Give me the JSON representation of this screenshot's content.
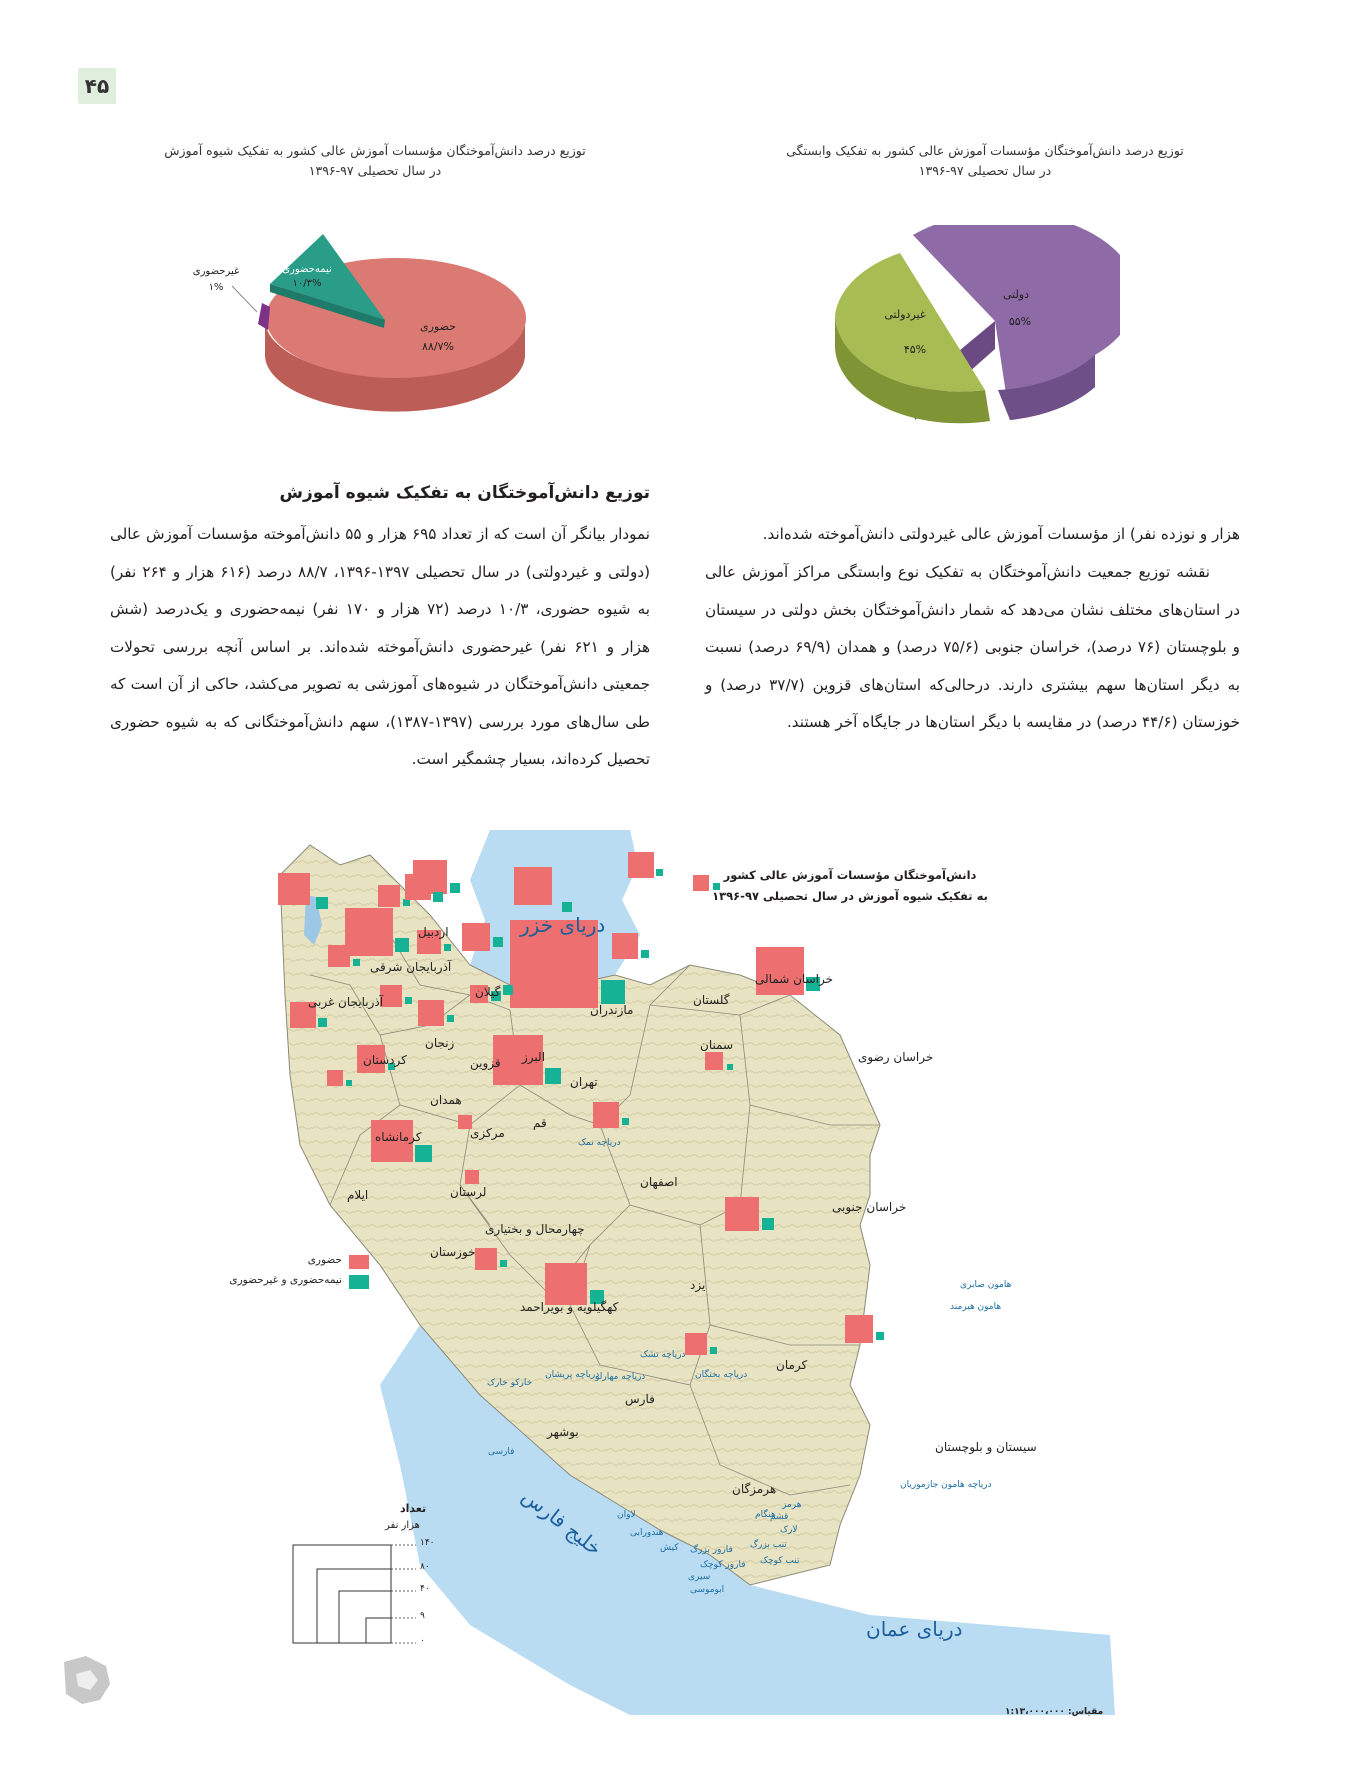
{
  "page_number": "۴۵",
  "colors": {
    "governmental": "#8f6aa8",
    "non_governmental": "#a6bc52",
    "in_person": "#d9776e",
    "semi_in_person": "#27a08a",
    "non_in_person": "#7a2f86",
    "square_in_person": "#ee6f6f",
    "square_semi": "#15b295",
    "sea": "#b9dcf2",
    "land": "#e9e4c3"
  },
  "chart_affiliation": {
    "title_line1": "توزیع درصد دانش‌آموختگان مؤسسات آموزش عالی کشور به تفکیک وابستگی",
    "title_line2": "در سال تحصیلی ۹۷-۱۳۹۶",
    "slices": [
      {
        "label": "دولتی",
        "value_text": "۵۵%"
      },
      {
        "label": "غیردولتی",
        "value_text": "۴۵%"
      }
    ]
  },
  "chart_mode": {
    "title_line1": "توزیع درصد دانش‌آموختگان مؤسسات آموزش عالی کشور به تفکیک شیوه آموزش",
    "title_line2": "در سال تحصیلی ۹۷-۱۳۹۶",
    "slices": [
      {
        "label": "حضوری",
        "value_text": "۸۸/۷%"
      },
      {
        "label": "نیمه‌حضوری",
        "value_text": "۱۰/۳%"
      },
      {
        "label": "غیرحضوری",
        "value_text": "۱%"
      }
    ]
  },
  "chart_data": [
    {
      "type": "pie",
      "title": "توزیع درصد دانش‌آموختگان مؤسسات آموزش عالی کشور به تفکیک وابستگی",
      "categories": [
        "دولتی",
        "غیردولتی"
      ],
      "values": [
        55,
        45
      ]
    },
    {
      "type": "pie",
      "title": "توزیع درصد دانش‌آموختگان مؤسسات آموزش عالی کشور به تفکیک شیوه آموزش",
      "categories": [
        "حضوری",
        "نیمه‌حضوری",
        "غیرحضوری"
      ],
      "values": [
        88.7,
        10.3,
        1
      ]
    }
  ],
  "section_heading": "توزیع دانش‌آموختگان به تفکیک شیوه آموزش",
  "left_paragraph": "نمودار بیانگر آن است که از تعداد ۶۹۵ هزار و ۵۵ دانش‌آموخته مؤسسات آموزش عالی (دولتی و غیردولتی) در سال تحصیلی ۱۳۹۷-۱۳۹۶، ۸۸/۷ درصد (۶۱۶ هزار و ۲۶۴ نفر) به شیوه حضوری، ۱۰/۳ درصد (۷۲ هزار و ۱۷۰ نفر) نیمه‌حضوری و یک‌درصد (شش هزار و ۶۲۱ نفر) غیرحضوری دانش‌آموخته شده‌اند. بر اساس آنچه بررسی تحولات جمعیتی دانش‌آموختگان در شیوه‌های آموزشی به تصویر می‌کشد، حاکی از آن است که طی سال‌های مورد بررسی (۱۳۹۷-۱۳۸۷)، سهم دانش‌آموختگانی که به شیوه حضوری تحصیل کرده‌اند، بسیار چشمگیر است.",
  "right_paragraph_top": "هزار و نوزده نفر) از مؤسسات آموزش عالی غیردولتی دانش‌آموخته شده‌اند.",
  "right_paragraph": "نقشه توزیع جمعیت دانش‌آموختگان به تفکیک نوع وابستگی مراکز آموزش عالی در استان‌های مختلف نشان می‌دهد که شمار دانش‌آموختگان بخش دولتی در سیستان و بلوچستان (۷۶ درصد)، خراسان جنوبی (۷۵/۶ درصد) و همدان (۶۹/۹ درصد) نسبت به دیگر استان‌ها سهم بیشتری دارند. درحالی‌که استان‌های قزوین (۳۷/۷ درصد) و خوزستان (۴۴/۶ درصد) در مقایسه با دیگر استان‌ها در جایگاه آخر هستند.",
  "map": {
    "title_line1": "دانش‌آموختگان مؤسسات آموزش عالی کشور",
    "title_line2": "به تفکیک شیوه آموزش در سال تحصیلی ۹۷-۱۳۹۶",
    "seas": {
      "caspian": "دریای خزر",
      "gulf": "خلیج فارس",
      "oman": "دریای عمان"
    },
    "provinces": [
      {
        "name": "تهران",
        "in_person": 140,
        "semi": 12
      },
      {
        "name": "مازندران",
        "in_person": 28,
        "semi": 2
      },
      {
        "name": "گیلان",
        "in_person": 22,
        "semi": 2
      },
      {
        "name": "اصفهان",
        "in_person": 48,
        "semi": 5
      },
      {
        "name": "خراسان رضوی",
        "in_person": 44,
        "semi": 4
      },
      {
        "name": "فارس",
        "in_person": 34,
        "semi": 4
      },
      {
        "name": "خوزستان",
        "in_person": 34,
        "semi": 5
      },
      {
        "name": "آذربایجان شرقی",
        "in_person": 32,
        "semi": 3
      },
      {
        "name": "کرمان",
        "in_person": 22,
        "semi": 2
      },
      {
        "name": "آذربایجان غربی",
        "in_person": 16,
        "semi": 2
      },
      {
        "name": "اردبیل",
        "in_person": 9,
        "semi": 1
      },
      {
        "name": "گلستان",
        "in_person": 12,
        "semi": 1
      },
      {
        "name": "سمنان",
        "in_person": 13,
        "semi": 1
      },
      {
        "name": "خراسان شمالی",
        "in_person": 5,
        "semi": 1
      },
      {
        "name": "خراسان جنوبی",
        "in_person": 6,
        "semi": 1
      },
      {
        "name": "سیستان و بلوچستان",
        "in_person": 13,
        "semi": 1
      },
      {
        "name": "هرمزگان",
        "in_person": 9,
        "semi": 1
      },
      {
        "name": "بوشهر",
        "in_person": 9,
        "semi": 1
      },
      {
        "name": "کهگیلویه و بویراحمد",
        "in_person": 6,
        "semi": 1
      },
      {
        "name": "چهارمحال و بختیاری",
        "in_person": 5,
        "semi": 1
      },
      {
        "name": "یزد",
        "in_person": 13,
        "semi": 1
      },
      {
        "name": "ایلام",
        "in_person": 6,
        "semi": 1
      },
      {
        "name": "لرستان",
        "in_person": 14,
        "semi": 1
      },
      {
        "name": "کرمانشاه",
        "in_person": 12,
        "semi": 2
      },
      {
        "name": "همدان",
        "in_person": 9,
        "semi": 1
      },
      {
        "name": "مرکزی",
        "in_person": 13,
        "semi": 1
      },
      {
        "name": "قم",
        "in_person": 6,
        "semi": 2
      },
      {
        "name": "قزوین",
        "in_person": 9,
        "semi": 1
      },
      {
        "name": "البرز",
        "in_person": 14,
        "semi": 2
      },
      {
        "name": "زنجان",
        "in_person": 9,
        "semi": 1
      },
      {
        "name": "کردستان",
        "in_person": 9,
        "semi": 1
      }
    ],
    "water_labels": [
      "دریاچه نمک",
      "هامون صابری",
      "هامون هیرمند",
      "دریاچه هامون جازموریان",
      "دریاچه بختگان",
      "دریاچه تشک",
      "دریاچه مهارلو",
      "دریاچه پریشان",
      "خارکو خارک",
      "فارسی",
      "لاوان",
      "هندورابی",
      "کیش",
      "فارور بزرگ",
      "فارور کوچک",
      "سیری",
      "ابوموسی",
      "تنب بزرگ",
      "تنب کوچک",
      "لارک",
      "هنگام",
      "قشم",
      "هرمز"
    ],
    "legend": {
      "in_person": "حضوری",
      "semi_and_non": "نیمه‌حضوری و غیرحضوری"
    },
    "size_legend": {
      "title": "تعداد",
      "unit": "هزار نفر",
      "ticks": [
        "۱۴۰",
        "۸۰",
        "۴۰",
        "۹",
        "۰"
      ]
    },
    "scale": "مقیاس: ۱:۱۳،۰۰۰،۰۰۰"
  }
}
